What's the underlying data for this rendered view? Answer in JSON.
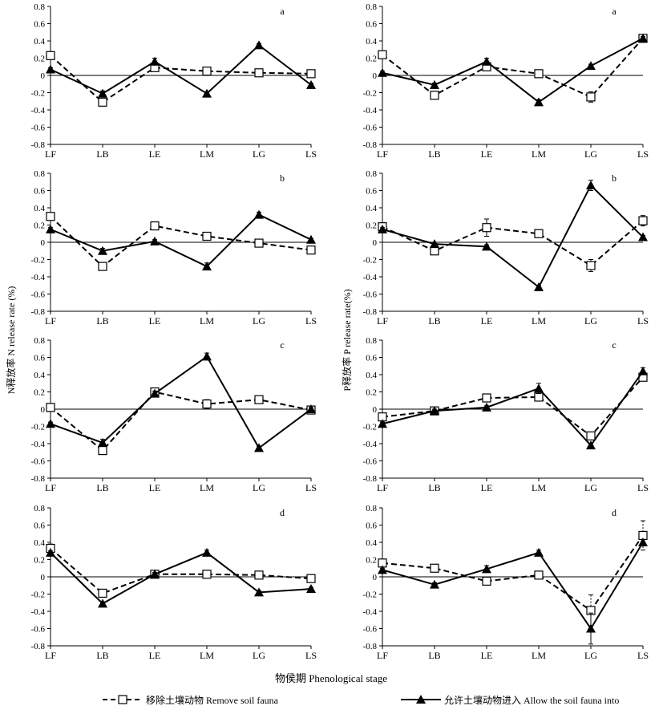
{
  "chart_data": [
    {
      "type": "line",
      "column": "N",
      "row": 0,
      "panel_label": "a",
      "categories": [
        "LF",
        "LB",
        "LE",
        "LM",
        "LG",
        "LS"
      ],
      "yticks": [
        "0.8",
        "0.6",
        "0.4",
        "0.2",
        "0",
        "-0.2",
        "-0.4",
        "-0.6",
        "-0.8"
      ],
      "ylim": [
        -0.8,
        0.8
      ],
      "series": [
        {
          "name": "移除土壤动物 Remove soil fauna",
          "values": [
            0.23,
            -0.31,
            0.09,
            0.05,
            0.03,
            0.02
          ],
          "errors": [
            0.02,
            0.03,
            0.02,
            0.02,
            0.01,
            0.02
          ]
        },
        {
          "name": "允许土壤动物进入 Allow the soil fauna into",
          "values": [
            0.07,
            -0.21,
            0.16,
            -0.21,
            0.35,
            -0.11
          ],
          "errors": [
            0.02,
            0.03,
            0.04,
            0.02,
            0.02,
            0.02
          ]
        }
      ]
    },
    {
      "type": "line",
      "column": "P",
      "row": 0,
      "panel_label": "a",
      "categories": [
        "LF",
        "LB",
        "LE",
        "LM",
        "LG",
        "LS"
      ],
      "yticks": [
        "0.8",
        "0.6",
        "0.4",
        "0.2",
        "0",
        "-0.2",
        "-0.4",
        "-0.6",
        "-0.8"
      ],
      "ylim": [
        -0.8,
        0.8
      ],
      "series": [
        {
          "name": "移除土壤动物 Remove soil fauna",
          "values": [
            0.24,
            -0.23,
            0.1,
            0.02,
            -0.25,
            0.43
          ],
          "errors": [
            0.02,
            0.02,
            0.03,
            0.03,
            0.06,
            0.02
          ]
        },
        {
          "name": "允许土壤动物进入 Allow the soil fauna into",
          "values": [
            0.03,
            -0.11,
            0.16,
            -0.31,
            0.11,
            0.43
          ],
          "errors": [
            0.02,
            0.02,
            0.04,
            0.03,
            0.02,
            0.02
          ]
        }
      ]
    },
    {
      "type": "line",
      "column": "N",
      "row": 1,
      "panel_label": "b",
      "categories": [
        "LF",
        "LB",
        "LE",
        "LM",
        "LG",
        "LS"
      ],
      "yticks": [
        "0.8",
        "0.6",
        "0.4",
        "0.2",
        "0",
        "-0.2",
        "-0.4",
        "-0.6",
        "-0.8"
      ],
      "ylim": [
        -0.8,
        0.8
      ],
      "series": [
        {
          "name": "移除土壤动物 Remove soil fauna",
          "values": [
            0.3,
            -0.28,
            0.19,
            0.07,
            -0.01,
            -0.09
          ],
          "errors": [
            0.02,
            0.03,
            0.02,
            0.02,
            0.01,
            0.02
          ]
        },
        {
          "name": "允许土壤动物进入 Allow the soil fauna into",
          "values": [
            0.15,
            -0.1,
            0.01,
            -0.28,
            0.32,
            0.03
          ],
          "errors": [
            0.02,
            0.03,
            0.02,
            0.04,
            0.03,
            0.01
          ]
        }
      ]
    },
    {
      "type": "line",
      "column": "P",
      "row": 1,
      "panel_label": "b",
      "categories": [
        "LF",
        "LB",
        "LE",
        "LM",
        "LG",
        "LS"
      ],
      "yticks": [
        "0.8",
        "0.6",
        "0.4",
        "0.2",
        "0",
        "-0.2",
        "-0.4",
        "-0.6",
        "-0.8"
      ],
      "ylim": [
        -0.8,
        0.8
      ],
      "series": [
        {
          "name": "移除土壤动物 Remove soil fauna",
          "values": [
            0.18,
            -0.1,
            0.17,
            0.1,
            -0.27,
            0.25
          ],
          "errors": [
            0.02,
            0.02,
            0.1,
            0.04,
            0.07,
            0.06
          ]
        },
        {
          "name": "允许土壤动物进入 Allow the soil fauna into",
          "values": [
            0.15,
            -0.02,
            -0.05,
            -0.52,
            0.66,
            0.06
          ],
          "errors": [
            0.02,
            0.02,
            0.02,
            0.02,
            0.06,
            0.02
          ]
        }
      ]
    },
    {
      "type": "line",
      "column": "N",
      "row": 2,
      "panel_label": "c",
      "categories": [
        "LF",
        "LB",
        "LE",
        "LM",
        "LG",
        "LS"
      ],
      "yticks": [
        "0.8",
        "0.6",
        "0.4",
        "0.2",
        "0",
        "-0.2",
        "-0.4",
        "-0.6",
        "-0.8"
      ],
      "ylim": [
        -0.8,
        0.8
      ],
      "series": [
        {
          "name": "移除土壤动物 Remove soil fauna",
          "values": [
            0.02,
            -0.48,
            0.2,
            0.06,
            0.11,
            -0.01
          ],
          "errors": [
            0.02,
            0.03,
            0.03,
            0.05,
            0.02,
            0.02
          ]
        },
        {
          "name": "允许土壤动物进入 Allow the soil fauna into",
          "values": [
            -0.17,
            -0.39,
            0.18,
            0.61,
            -0.45,
            0.0
          ],
          "errors": [
            0.02,
            0.04,
            0.03,
            0.04,
            0.02,
            0.02
          ]
        }
      ]
    },
    {
      "type": "line",
      "column": "P",
      "row": 2,
      "panel_label": "c",
      "categories": [
        "LF",
        "LB",
        "LE",
        "LM",
        "LG",
        "LS"
      ],
      "yticks": [
        "0.8",
        "0.6",
        "0.4",
        "0.2",
        "0",
        "-0.2",
        "-0.4",
        "-0.6",
        "-0.8"
      ],
      "ylim": [
        -0.8,
        0.8
      ],
      "series": [
        {
          "name": "移除土壤动物 Remove soil fauna",
          "values": [
            -0.09,
            -0.02,
            0.13,
            0.14,
            -0.31,
            0.37
          ],
          "errors": [
            0.02,
            0.02,
            0.02,
            0.04,
            0.03,
            0.04
          ]
        },
        {
          "name": "允许土壤动物进入 Allow the soil fauna into",
          "values": [
            -0.17,
            -0.02,
            0.02,
            0.24,
            -0.42,
            0.44
          ],
          "errors": [
            0.02,
            0.02,
            0.02,
            0.06,
            0.02,
            0.04
          ]
        }
      ]
    },
    {
      "type": "line",
      "column": "N",
      "row": 3,
      "panel_label": "d",
      "categories": [
        "LF",
        "LB",
        "LE",
        "LM",
        "LG",
        "LS"
      ],
      "yticks": [
        "0.8",
        "0.6",
        "0.4",
        "0.2",
        "0",
        "-0.2",
        "-0.4",
        "-0.6",
        "-0.8"
      ],
      "ylim": [
        -0.8,
        0.8
      ],
      "series": [
        {
          "name": "移除土壤动物 Remove soil fauna",
          "values": [
            0.33,
            -0.19,
            0.03,
            0.03,
            0.02,
            -0.02
          ],
          "errors": [
            0.05,
            0.03,
            0.02,
            0.02,
            0.02,
            0.03
          ]
        },
        {
          "name": "允许土壤动物进入 Allow the soil fauna into",
          "values": [
            0.28,
            -0.31,
            0.03,
            0.28,
            -0.18,
            -0.14
          ],
          "errors": [
            0.02,
            0.02,
            0.02,
            0.03,
            0.02,
            0.02
          ]
        }
      ]
    },
    {
      "type": "line",
      "column": "P",
      "row": 3,
      "panel_label": "d",
      "categories": [
        "LF",
        "LB",
        "LE",
        "LM",
        "LG",
        "LS"
      ],
      "yticks": [
        "0.8",
        "0.6",
        "0.4",
        "0.2",
        "0",
        "-0.2",
        "-0.4",
        "-0.6",
        "-0.8"
      ],
      "ylim": [
        -0.8,
        0.8
      ],
      "series": [
        {
          "name": "移除土壤动物 Remove soil fauna",
          "values": [
            0.16,
            0.1,
            -0.05,
            0.02,
            -0.39,
            0.48
          ],
          "errors": [
            0.02,
            0.02,
            0.03,
            0.02,
            0.18,
            0.17
          ]
        },
        {
          "name": "允许土壤动物进入 Allow the soil fauna into",
          "values": [
            0.08,
            -0.09,
            0.09,
            0.28,
            -0.6,
            0.4
          ],
          "errors": [
            0.02,
            0.02,
            0.04,
            0.03,
            0.18,
            0.03
          ]
        }
      ]
    }
  ],
  "axes": {
    "left_ylabel": "N释放率 N release rate (%)",
    "right_ylabel": "P释放率 P release rate(%)",
    "xlabel": "物侯期 Phenological stage"
  },
  "legend": {
    "remove_label": "移除土壤动物 Remove soil fauna",
    "allow_label": "允许土壤动物进入 Allow the soil fauna into",
    "remove_icon": "dashed-line-open-square-icon",
    "allow_icon": "solid-line-filled-triangle-icon"
  },
  "colors": {
    "line": "#000000",
    "axis": "#000000",
    "background": "#ffffff"
  }
}
